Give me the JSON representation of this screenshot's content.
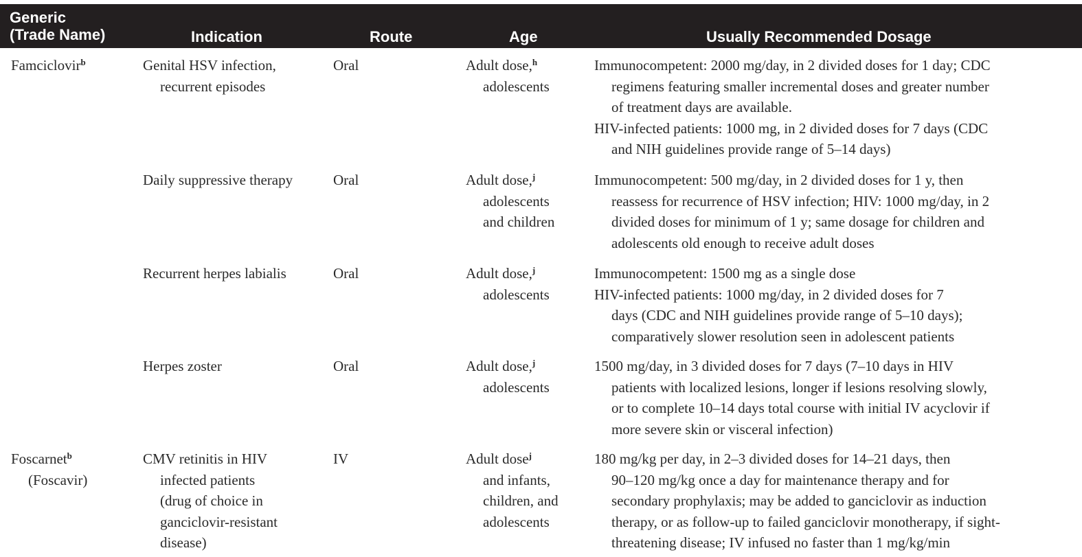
{
  "header": {
    "generic_line1": "Generic",
    "generic_line2": "(Trade Name)",
    "indication": "Indication",
    "route": "Route",
    "age": "Age",
    "dosage": "Usually Recommended Dosage"
  },
  "rows": [
    {
      "generic": [
        "Famciclovir"
      ],
      "generic_sup": "b",
      "indication": [
        "Genital HSV infection,",
        "recurrent episodes"
      ],
      "route": "Oral",
      "age": [
        "Adult dose,",
        "adolescents"
      ],
      "age_sup": "h",
      "dosage": [
        "Immunocompetent: 2000 mg/day, in 2 divided doses for 1 day; CDC",
        "regimens featuring smaller incremental doses and greater number",
        "of treatment days are available.",
        "HIV-infected patients: 1000 mg, in 2 divided doses for 7 days (CDC",
        "and NIH guidelines provide range of 5–14 days)"
      ]
    },
    {
      "generic": [],
      "generic_sup": "",
      "indication": [
        "Daily suppressive therapy"
      ],
      "route": "Oral",
      "age": [
        "Adult dose,",
        "adolescents",
        "and children"
      ],
      "age_sup": "j",
      "dosage": [
        "Immunocompetent: 500 mg/day, in 2 divided doses for 1 y, then",
        "reassess for recurrence of HSV infection; HIV: 1000 mg/day, in 2",
        "divided doses for minimum of 1 y; same dosage for children and",
        "adolescents old enough to receive adult doses"
      ]
    },
    {
      "generic": [],
      "generic_sup": "",
      "indication": [
        "Recurrent herpes labialis"
      ],
      "route": "Oral",
      "age": [
        "Adult dose,",
        "adolescents"
      ],
      "age_sup": "j",
      "dosage": [
        "Immunocompetent: 1500 mg as a single dose",
        "HIV-infected patients: 1000 mg/day, in 2 divided doses for 7",
        "days (CDC and NIH guidelines provide range of 5–10 days);",
        "comparatively slower resolution seen in adolescent patients"
      ]
    },
    {
      "generic": [],
      "generic_sup": "",
      "indication": [
        "Herpes zoster"
      ],
      "route": "Oral",
      "age": [
        "Adult dose,",
        "adolescents"
      ],
      "age_sup": "j",
      "dosage": [
        "1500 mg/day, in 3 divided doses for 7 days (7–10 days in HIV",
        "patients with localized lesions, longer if lesions resolving slowly,",
        "or to complete 10–14 days total course with initial IV acyclovir if",
        "more severe skin or visceral infection)"
      ]
    },
    {
      "generic": [
        "Foscarnet",
        "(Foscavir)"
      ],
      "generic_sup": "b",
      "indication": [
        "CMV retinitis in HIV",
        "infected patients",
        "(drug of choice in",
        "ganciclovir-resistant",
        "disease)"
      ],
      "route": "IV",
      "age": [
        "Adult dose",
        "and infants,",
        "children, and",
        "adolescents"
      ],
      "age_sup": "j",
      "dosage": [
        "180 mg/kg per day, in 2–3 divided doses for 14–21 days, then",
        "90–120 mg/kg once a day for maintenance therapy and for",
        "secondary prophylaxis; may be added to ganciclovir as induction",
        "therapy, or as follow-up to failed ganciclovir monotherapy, if sight-",
        "threatening disease; IV infused no faster than 1 mg/kg/min"
      ]
    }
  ]
}
